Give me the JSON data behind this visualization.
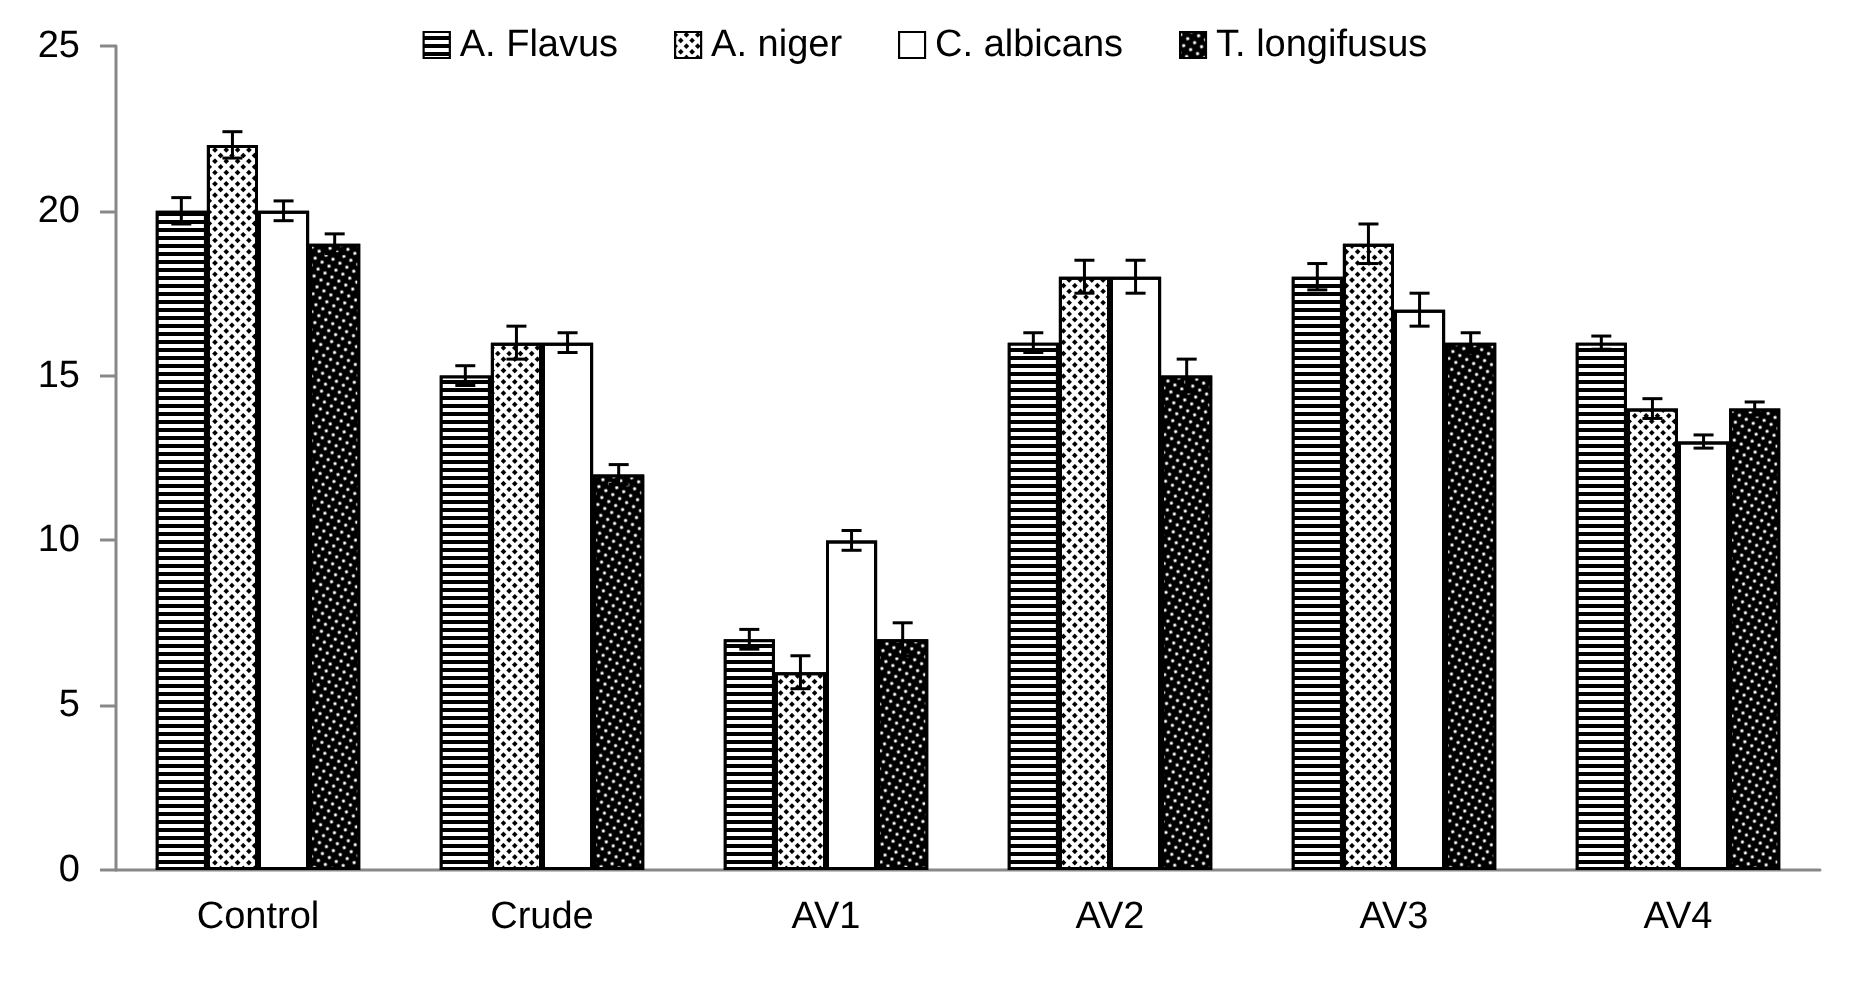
{
  "chart_data": {
    "type": "bar",
    "categories": [
      "Control",
      "Crude",
      "AV1",
      "AV2",
      "AV3",
      "AV4"
    ],
    "series": [
      {
        "name": "A. Flavus",
        "color": "#000000",
        "values": [
          20,
          15,
          7,
          16,
          18,
          16
        ],
        "errors": [
          0.4,
          0.3,
          0.3,
          0.3,
          0.4,
          0.2
        ]
      },
      {
        "name": "A. niger",
        "color": "#ffffff",
        "values": [
          22,
          16,
          6,
          18,
          19,
          14
        ],
        "errors": [
          0.4,
          0.5,
          0.5,
          0.5,
          0.6,
          0.3
        ]
      },
      {
        "name": "C. albicans",
        "color": "#ffffff",
        "values": [
          20,
          16,
          10,
          18,
          17,
          13
        ],
        "errors": [
          0.3,
          0.3,
          0.3,
          0.5,
          0.5,
          0.2
        ]
      },
      {
        "name": "T. longifusus",
        "color": "#000000",
        "values": [
          19,
          12,
          7,
          15,
          16,
          14
        ],
        "errors": [
          0.3,
          0.3,
          0.5,
          0.5,
          0.3,
          0.2
        ]
      }
    ],
    "ylim": [
      0,
      25
    ],
    "yticks": [
      0,
      5,
      10,
      15,
      20,
      25
    ],
    "grid": false,
    "legend": "top"
  }
}
